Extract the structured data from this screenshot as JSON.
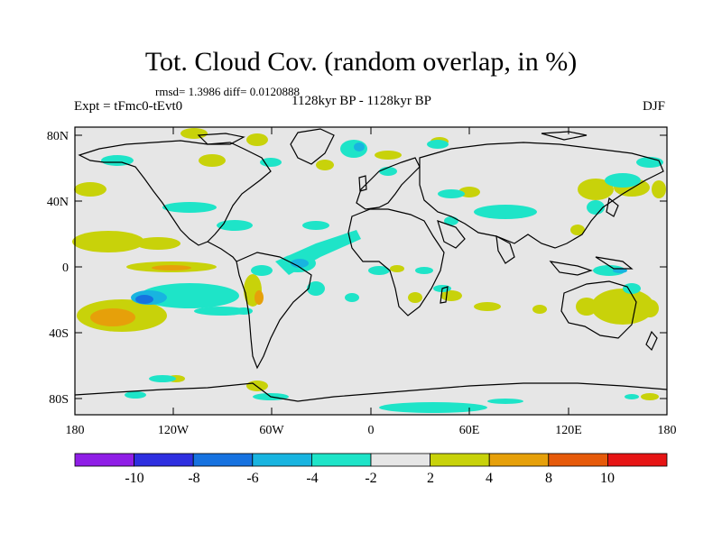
{
  "title": "Tot. Cloud Cov. (random overlap, in %)",
  "stats": "rmsd= 1.3986 diff= 0.0120888",
  "left_label": "Expt = tFmc0-tEvt0",
  "center_label": "1128kyr BP - 1128kyr BP",
  "right_label": "DJF",
  "lat_labels": [
    "80N",
    "40N",
    "0",
    "40S",
    "80S"
  ],
  "lon_labels": [
    "180",
    "120W",
    "60W",
    "0",
    "60E",
    "120E",
    "180"
  ],
  "colorbar": {
    "labels": [
      "-10",
      "-8",
      "-6",
      "-4",
      "-2",
      "2",
      "4",
      "8",
      "10"
    ],
    "colors": [
      "#8f1ee6",
      "#2e2fe0",
      "#1672e0",
      "#18b4e0",
      "#1ee4c8",
      "#e6e6e6",
      "#c8d20a",
      "#e6a00a",
      "#e65a0a",
      "#e61414"
    ]
  },
  "colors": {
    "land_fill": "#e6e6e6",
    "coast": "#000000"
  },
  "anomaly_regions": [
    {
      "region": "North Atlantic",
      "level": "-4 to -2"
    },
    {
      "region": "Equatorial Atlantic",
      "level": "-6 to -4"
    },
    {
      "region": "South Pacific",
      "level": "-8 to -6"
    },
    {
      "region": "South Pacific subtropics",
      "level": "4 to 8"
    },
    {
      "region": "Equatorial central Pacific",
      "level": "4 to 8"
    },
    {
      "region": "Australia",
      "level": "2 to 4"
    }
  ]
}
